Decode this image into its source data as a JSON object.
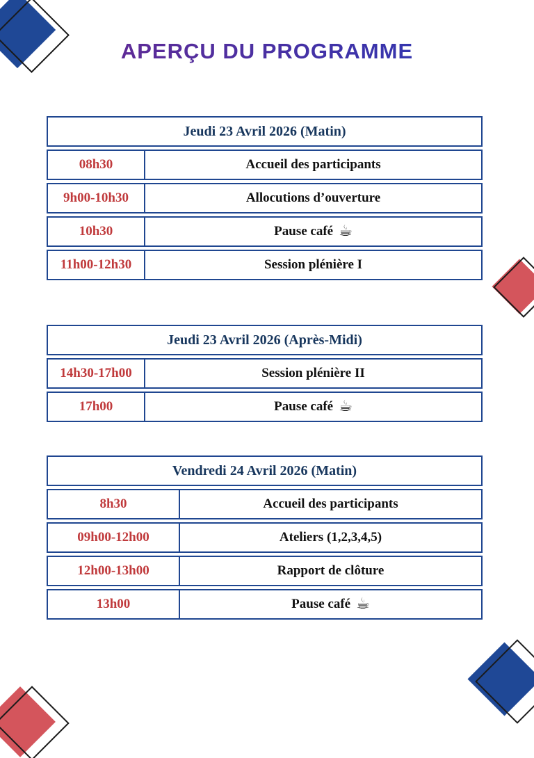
{
  "title": "APERÇU DU PROGRAMME",
  "colors": {
    "title_gradient_start": "#5e2b97",
    "title_gradient_end": "#3535ae",
    "table_border": "#1f4690",
    "header_text": "#17365d",
    "time_text": "#c03a3c",
    "event_text": "#111111",
    "diamond_blue": "#1f4896",
    "diamond_red": "#d4555c",
    "diamond_outline": "#1a1a1a"
  },
  "icons": {
    "coffee": "☕"
  },
  "tables": [
    {
      "header": "Jeudi 23 Avril 2026 (Matin)",
      "rows": [
        {
          "time": "08h30",
          "event": "Accueil des participants"
        },
        {
          "time": "9h00-10h30",
          "event": "Allocutions d’ouverture"
        },
        {
          "time": "10h30",
          "event": "Pause café",
          "icon": "coffee"
        },
        {
          "time": "11h00-12h30",
          "event": "Session plénière I"
        }
      ]
    },
    {
      "header": "Jeudi 23 Avril 2026 (Après-Midi)",
      "rows": [
        {
          "time": "14h30-17h00",
          "event": "Session plénière II"
        },
        {
          "time": "17h00",
          "event": "Pause café",
          "icon": "coffee"
        }
      ]
    },
    {
      "header": "Vendredi 24 Avril 2026 (Matin)",
      "rows": [
        {
          "time": "8h30",
          "event": "Accueil des participants"
        },
        {
          "time": "09h00-12h00",
          "event": "Ateliers (1,2,3,4,5)"
        },
        {
          "time": "12h00-13h00",
          "event": "Rapport de clôture"
        },
        {
          "time": "13h00",
          "event": "Pause café",
          "icon": "coffee"
        }
      ]
    }
  ]
}
